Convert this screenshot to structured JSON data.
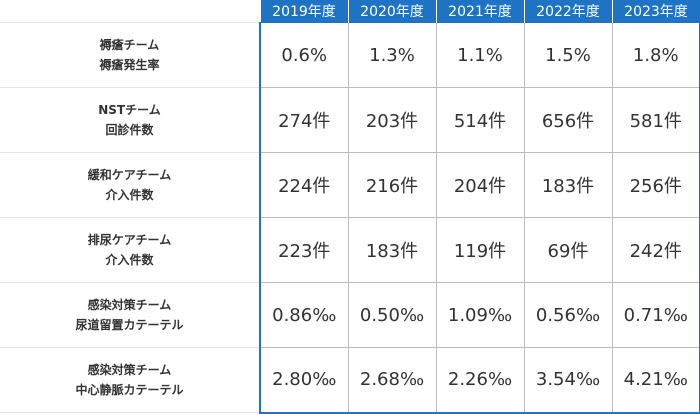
{
  "years": [
    "2019年度",
    "2020年度",
    "2021年度",
    "2022年度",
    "2023年度"
  ],
  "rows": [
    {
      "label_line1": "褥瘡チーム",
      "label_line2": "褥瘡発生率",
      "values": [
        "0.6%",
        "1.3%",
        "1.1%",
        "1.5%",
        "1.8%"
      ]
    },
    {
      "label_line1": "NSTチーム",
      "label_line2": "回診件数",
      "values": [
        "274件",
        "203件",
        "514件",
        "656件",
        "581件"
      ]
    },
    {
      "label_line1": "緩和ケアチーム",
      "label_line2": "介入件数",
      "values": [
        "224件",
        "216件",
        "204件",
        "183件",
        "256件"
      ]
    },
    {
      "label_line1": "排尿ケアチーム",
      "label_line2": "介入件数",
      "values": [
        "223件",
        "183件",
        "119件",
        "69件",
        "242件"
      ]
    },
    {
      "label_line1": "感染対策チーム",
      "label_line2": "尿道留置カテーテル",
      "values": [
        "0.86‰",
        "0.50‰",
        "1.09‰",
        "0.56‰",
        "0.71‰"
      ]
    },
    {
      "label_line1": "感染対策チーム",
      "label_line2": "中心静脈カテーテル",
      "values": [
        "2.80‰",
        "2.68‰",
        "2.26‰",
        "3.54‰",
        "4.21‰"
      ]
    }
  ]
}
